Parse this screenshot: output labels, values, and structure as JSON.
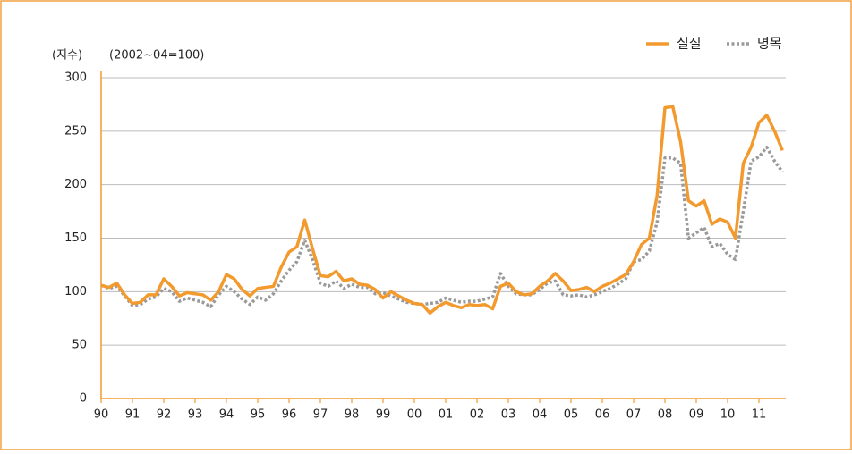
{
  "chart_data": {
    "type": "line",
    "y_unit_label": "(지수)",
    "subtitle": "(2002~04=100)",
    "categories": [
      "90",
      null,
      null,
      null,
      "91",
      null,
      null,
      null,
      "92",
      null,
      null,
      null,
      "93",
      null,
      null,
      null,
      "94",
      null,
      null,
      null,
      "95",
      null,
      null,
      null,
      "96",
      null,
      null,
      null,
      "97",
      null,
      null,
      null,
      "98",
      null,
      null,
      null,
      "99",
      null,
      null,
      null,
      "00",
      null,
      null,
      null,
      "01",
      null,
      null,
      null,
      "02",
      null,
      null,
      null,
      "03",
      null,
      null,
      null,
      "04",
      null,
      null,
      null,
      "05",
      null,
      null,
      null,
      "06",
      null,
      null,
      null,
      "07",
      null,
      null,
      null,
      "08",
      null,
      null,
      null,
      "09",
      null,
      null,
      null,
      "10",
      null,
      null,
      null,
      "11",
      null,
      null,
      null
    ],
    "series": [
      {
        "name": "실질",
        "color": "#f39a2e",
        "style": "solid",
        "values": [
          106,
          104,
          108,
          97,
          89,
          90,
          97,
          97,
          112,
          105,
          96,
          99,
          98,
          97,
          92,
          100,
          116,
          112,
          102,
          96,
          103,
          104,
          105,
          123,
          137,
          142,
          167,
          140,
          115,
          114,
          119,
          110,
          112,
          107,
          106,
          102,
          94,
          100,
          96,
          92,
          89,
          88,
          80,
          86,
          90,
          87,
          85,
          88,
          87,
          88,
          84,
          105,
          108,
          100,
          97,
          98,
          105,
          110,
          117,
          110,
          101,
          102,
          104,
          100,
          105,
          108,
          112,
          116,
          128,
          144,
          150,
          190,
          272,
          273,
          240,
          185,
          180,
          185,
          163,
          168,
          165,
          150,
          220,
          235,
          258,
          265,
          250,
          232
        ]
      },
      {
        "name": "명목",
        "color": "#9a9a9a",
        "style": "dotted",
        "values": [
          106,
          103,
          105,
          96,
          87,
          88,
          93,
          95,
          103,
          100,
          91,
          94,
          92,
          90,
          86,
          97,
          105,
          100,
          93,
          88,
          95,
          92,
          98,
          110,
          120,
          128,
          148,
          130,
          108,
          105,
          110,
          103,
          107,
          104,
          104,
          98,
          99,
          96,
          93,
          90,
          89,
          88,
          89,
          90,
          94,
          92,
          90,
          91,
          91,
          93,
          95,
          117,
          105,
          98,
          97,
          97,
          102,
          108,
          110,
          97,
          96,
          97,
          95,
          97,
          100,
          103,
          107,
          112,
          128,
          130,
          138,
          165,
          225,
          225,
          220,
          150,
          155,
          160,
          142,
          145,
          135,
          130,
          175,
          222,
          226,
          235,
          222,
          212
        ]
      }
    ],
    "ylim": [
      0,
      300
    ],
    "yticks": [
      0,
      50,
      100,
      150,
      200,
      250,
      300
    ],
    "grid": true,
    "legend": "top-right"
  }
}
